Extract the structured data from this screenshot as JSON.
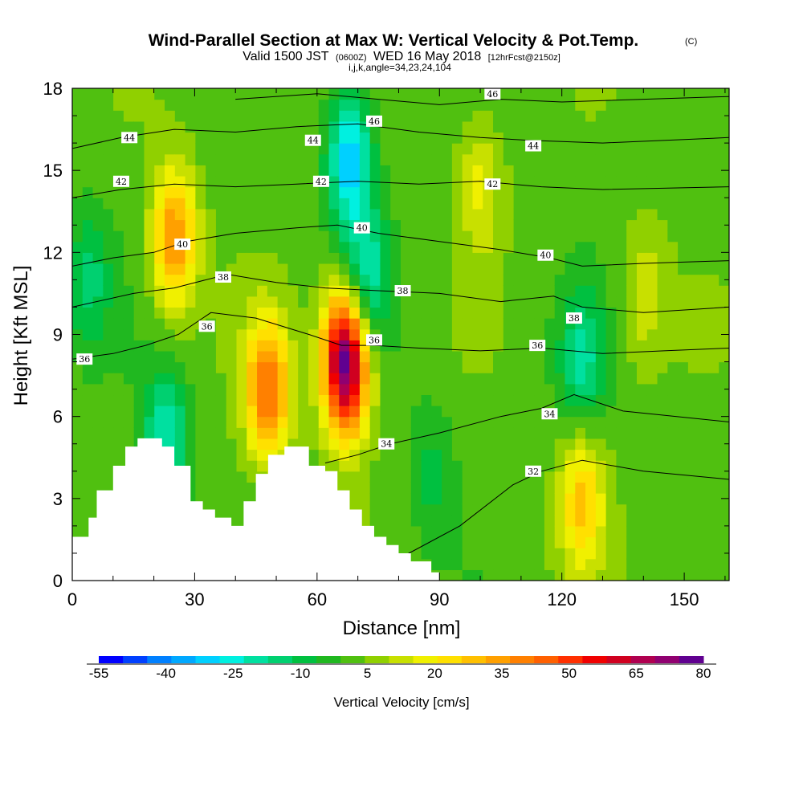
{
  "title": {
    "main": "Wind-Parallel Section at Max W: Vertical Velocity & Pot.Temp.",
    "copyright": "(C)",
    "sub_prefix": "Valid 1500 JST",
    "sub_zulu": "(0600Z)",
    "sub_date": "WED 16 May 2018",
    "sub_fcst": "[12hrFcst@2150z]",
    "indices": "i,j,k,angle=34,23,24,104"
  },
  "chart_data": {
    "type": "heatmap",
    "xlabel": "Distance [nm]",
    "ylabel": "Height [Kft MSL]",
    "xlim": [
      0,
      161
    ],
    "ylim": [
      0,
      18
    ],
    "xticks": [
      0,
      30,
      60,
      90,
      120,
      150
    ],
    "yticks": [
      0,
      3,
      6,
      9,
      12,
      15,
      18
    ],
    "colorbar": {
      "title": "Vertical Velocity [cm/s]",
      "ticks": [
        "-55",
        "-40",
        "-25",
        "-10",
        "5",
        "20",
        "35",
        "50",
        "65",
        "80"
      ],
      "colors": [
        "#0000ff",
        "#0040ff",
        "#0080ff",
        "#00a8ff",
        "#00d0ff",
        "#00f0e0",
        "#00e0a0",
        "#00d070",
        "#00c040",
        "#20b820",
        "#50c010",
        "#90d000",
        "#c8e000",
        "#f0f000",
        "#ffe000",
        "#ffc000",
        "#ffa000",
        "#ff8000",
        "#ff6000",
        "#ff3000",
        "#f00000",
        "#d00020",
        "#b00050",
        "#900070",
        "#600090"
      ]
    },
    "w_features": [
      {
        "x": 25,
        "y": 12.5,
        "w": 35
      },
      {
        "x": 48,
        "y": 7.0,
        "w": 40
      },
      {
        "x": 67,
        "y": 8.0,
        "w": 80
      },
      {
        "x": 125,
        "y": 3.0,
        "w": 25
      },
      {
        "x": 100,
        "y": 14.5,
        "w": 15
      },
      {
        "x": 140,
        "y": 10.5,
        "w": 12
      },
      {
        "x": 68,
        "y": 15.5,
        "w": -35
      },
      {
        "x": 72,
        "y": 11.0,
        "w": -25
      },
      {
        "x": 23,
        "y": 5.0,
        "w": -25
      },
      {
        "x": 125,
        "y": 8.0,
        "w": -20
      },
      {
        "x": 4,
        "y": 11.0,
        "w": -15
      },
      {
        "x": 88,
        "y": 4.0,
        "w": -10
      }
    ],
    "terrain": [
      [
        0,
        1.6
      ],
      [
        4,
        2.3
      ],
      [
        6,
        3.3
      ],
      [
        10,
        4.2
      ],
      [
        13,
        4.9
      ],
      [
        16,
        5.2
      ],
      [
        22,
        4.9
      ],
      [
        25,
        4.2
      ],
      [
        29,
        2.9
      ],
      [
        32,
        2.6
      ],
      [
        35,
        2.3
      ],
      [
        39,
        2.0
      ],
      [
        42,
        2.9
      ],
      [
        45,
        3.9
      ],
      [
        48,
        4.6
      ],
      [
        52,
        4.9
      ],
      [
        58,
        4.2
      ],
      [
        62,
        4.0
      ],
      [
        65,
        3.3
      ],
      [
        68,
        2.6
      ],
      [
        71,
        2.0
      ],
      [
        74,
        1.6
      ],
      [
        77,
        1.3
      ],
      [
        80,
        1.0
      ],
      [
        83,
        0.7
      ],
      [
        88,
        0.3
      ]
    ],
    "theta_contours": [
      {
        "value": 32,
        "points": [
          [
            80,
            0.8
          ],
          [
            95,
            2.0
          ],
          [
            108,
            3.5
          ],
          [
            115,
            4.0
          ],
          [
            125,
            4.4
          ],
          [
            140,
            4.0
          ],
          [
            161,
            3.7
          ]
        ]
      },
      {
        "value": 34,
        "points": [
          [
            62,
            4.3
          ],
          [
            70,
            4.6
          ],
          [
            78,
            5.0
          ],
          [
            90,
            5.4
          ],
          [
            105,
            6.0
          ],
          [
            115,
            6.3
          ],
          [
            123,
            6.8
          ],
          [
            135,
            6.2
          ],
          [
            161,
            5.8
          ]
        ]
      },
      {
        "value": 36,
        "points": [
          [
            0,
            8.1
          ],
          [
            10,
            8.3
          ],
          [
            18,
            8.6
          ],
          [
            26,
            9.0
          ],
          [
            34,
            9.8
          ],
          [
            45,
            9.6
          ],
          [
            58,
            9.0
          ],
          [
            66,
            8.6
          ],
          [
            74,
            8.6
          ],
          [
            85,
            8.5
          ],
          [
            100,
            8.4
          ],
          [
            115,
            8.5
          ],
          [
            130,
            8.3
          ],
          [
            145,
            8.4
          ],
          [
            161,
            8.5
          ]
        ]
      },
      {
        "value": 38,
        "points": [
          [
            0,
            10.0
          ],
          [
            15,
            10.5
          ],
          [
            25,
            10.7
          ],
          [
            38,
            11.2
          ],
          [
            50,
            10.9
          ],
          [
            62,
            10.7
          ],
          [
            75,
            10.6
          ],
          [
            90,
            10.5
          ],
          [
            105,
            10.2
          ],
          [
            118,
            10.4
          ],
          [
            125,
            10.0
          ],
          [
            140,
            9.8
          ],
          [
            161,
            10.0
          ]
        ]
      },
      {
        "value": 40,
        "points": [
          [
            0,
            11.5
          ],
          [
            10,
            11.8
          ],
          [
            20,
            12.0
          ],
          [
            28,
            12.4
          ],
          [
            40,
            12.7
          ],
          [
            55,
            12.9
          ],
          [
            65,
            13.0
          ],
          [
            75,
            12.7
          ],
          [
            90,
            12.4
          ],
          [
            105,
            12.1
          ],
          [
            117,
            11.8
          ],
          [
            125,
            11.5
          ],
          [
            140,
            11.6
          ],
          [
            161,
            11.7
          ]
        ]
      },
      {
        "value": 42,
        "points": [
          [
            0,
            14.0
          ],
          [
            12,
            14.3
          ],
          [
            25,
            14.5
          ],
          [
            40,
            14.4
          ],
          [
            55,
            14.5
          ],
          [
            70,
            14.6
          ],
          [
            85,
            14.5
          ],
          [
            100,
            14.6
          ],
          [
            115,
            14.4
          ],
          [
            130,
            14.3
          ],
          [
            161,
            14.4
          ]
        ]
      },
      {
        "value": 44,
        "points": [
          [
            0,
            15.8
          ],
          [
            12,
            16.2
          ],
          [
            25,
            16.5
          ],
          [
            40,
            16.4
          ],
          [
            55,
            16.6
          ],
          [
            70,
            16.7
          ],
          [
            85,
            16.4
          ],
          [
            100,
            16.2
          ],
          [
            112,
            16.1
          ],
          [
            130,
            16.0
          ],
          [
            161,
            16.2
          ]
        ]
      },
      {
        "value": 46,
        "points": [
          [
            40,
            17.6
          ],
          [
            60,
            17.8
          ],
          [
            75,
            17.6
          ],
          [
            90,
            17.4
          ],
          [
            105,
            17.6
          ],
          [
            120,
            17.5
          ],
          [
            140,
            17.6
          ],
          [
            161,
            17.7
          ]
        ]
      }
    ],
    "contour_labels": [
      {
        "text": "44",
        "x": 14,
        "y": 16.2
      },
      {
        "text": "42",
        "x": 12,
        "y": 14.6
      },
      {
        "text": "40",
        "x": 27,
        "y": 12.3
      },
      {
        "text": "38",
        "x": 37,
        "y": 11.1
      },
      {
        "text": "36",
        "x": 33,
        "y": 9.3
      },
      {
        "text": "36",
        "x": 3,
        "y": 8.1
      },
      {
        "text": "44",
        "x": 59,
        "y": 16.1
      },
      {
        "text": "42",
        "x": 61,
        "y": 14.6
      },
      {
        "text": "40",
        "x": 71,
        "y": 12.9
      },
      {
        "text": "38",
        "x": 81,
        "y": 10.6
      },
      {
        "text": "36",
        "x": 74,
        "y": 8.8
      },
      {
        "text": "34",
        "x": 77,
        "y": 5.0
      },
      {
        "text": "46",
        "x": 74,
        "y": 16.8
      },
      {
        "text": "46",
        "x": 103,
        "y": 17.8
      },
      {
        "text": "44",
        "x": 113,
        "y": 15.9
      },
      {
        "text": "42",
        "x": 103,
        "y": 14.5
      },
      {
        "text": "40",
        "x": 116,
        "y": 11.9
      },
      {
        "text": "38",
        "x": 123,
        "y": 9.6
      },
      {
        "text": "36",
        "x": 114,
        "y": 8.6
      },
      {
        "text": "34",
        "x": 117,
        "y": 6.1
      },
      {
        "text": "32",
        "x": 113,
        "y": 4.0
      }
    ]
  }
}
